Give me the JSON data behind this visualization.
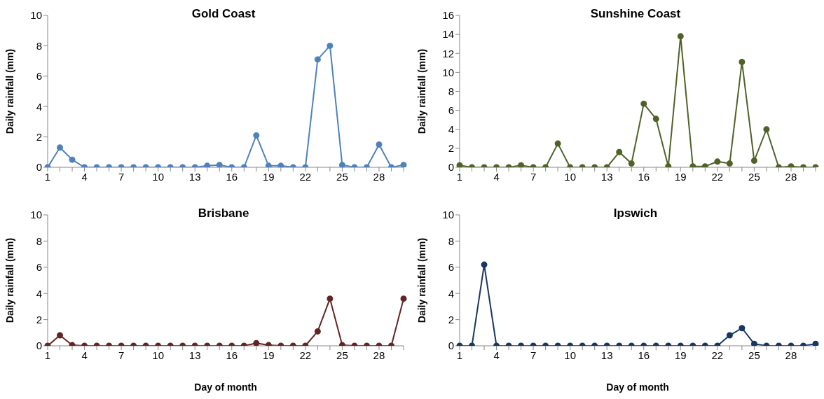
{
  "chart_data": [
    {
      "type": "line",
      "title": "Gold Coast",
      "ylabel": "Daily rainfall (mm)",
      "categories": [
        "1",
        null,
        null,
        "4",
        null,
        null,
        "7",
        null,
        null,
        "10",
        null,
        null,
        "13",
        null,
        null,
        "16",
        null,
        null,
        "19",
        null,
        null,
        "22",
        null,
        null,
        "25",
        null,
        null,
        "28",
        null,
        null
      ],
      "color": "#4f81bd",
      "marker": "circle",
      "ylim": [
        0,
        10
      ],
      "yticks": [
        0,
        2,
        4,
        6,
        8,
        10
      ],
      "values": [
        0,
        1.3,
        0.5,
        0,
        0,
        0,
        0,
        0,
        0,
        0,
        0,
        0,
        0,
        0.1,
        0.15,
        0,
        0,
        2.1,
        0.1,
        0.1,
        0,
        0,
        7.1,
        8,
        0.15,
        0,
        0,
        1.5,
        0,
        0.15
      ]
    },
    {
      "type": "line",
      "title": "Sunshine Coast",
      "ylabel": "Daily rainfall (mm)",
      "categories": [
        "1",
        null,
        null,
        "4",
        null,
        null,
        "7",
        null,
        null,
        "10",
        null,
        null,
        "13",
        null,
        null,
        "16",
        null,
        null,
        "19",
        null,
        null,
        "22",
        null,
        null,
        "25",
        null,
        null,
        "28",
        null,
        null
      ],
      "color": "#4f6228",
      "marker": "circle",
      "ylim": [
        0,
        16
      ],
      "yticks": [
        0,
        2,
        4,
        6,
        8,
        10,
        12,
        14,
        16
      ],
      "values": [
        0.2,
        0,
        0,
        0,
        0,
        0.2,
        0,
        0,
        2.5,
        0,
        0,
        0,
        0,
        1.6,
        0.4,
        6.7,
        5.1,
        0.1,
        13.8,
        0.1,
        0.1,
        0.6,
        0.4,
        11.1,
        0.7,
        4,
        0,
        0.1,
        0,
        0
      ]
    },
    {
      "type": "line",
      "title": "Brisbane",
      "ylabel": "Daily rainfall (mm)",
      "xlabel": "Day of month",
      "categories": [
        "1",
        null,
        null,
        "4",
        null,
        null,
        "7",
        null,
        null,
        "10",
        null,
        null,
        "13",
        null,
        null,
        "16",
        null,
        null,
        "19",
        null,
        null,
        "22",
        null,
        null,
        "25",
        null,
        null,
        "28",
        null,
        null
      ],
      "color": "#632523",
      "marker": "circle",
      "ylim": [
        0,
        10
      ],
      "yticks": [
        0,
        2,
        4,
        6,
        8,
        10
      ],
      "values": [
        0,
        0.8,
        0.05,
        0,
        0,
        0,
        0,
        0,
        0,
        0,
        0,
        0,
        0,
        0,
        0,
        0,
        0,
        0.2,
        0.05,
        0,
        0,
        0,
        1.1,
        3.6,
        0.05,
        0,
        0,
        0,
        0,
        3.6
      ]
    },
    {
      "type": "line",
      "title": "Ipswich",
      "ylabel": "Daily rainfall (mm)",
      "xlabel": "Day of month",
      "categories": [
        "1",
        null,
        null,
        "4",
        null,
        null,
        "7",
        null,
        null,
        "10",
        null,
        null,
        "13",
        null,
        null,
        "16",
        null,
        null,
        "19",
        null,
        null,
        "22",
        null,
        null,
        "25",
        null,
        null,
        "28",
        null,
        null
      ],
      "color": "#17375e",
      "marker": "circle",
      "ylim": [
        0,
        10
      ],
      "yticks": [
        0,
        2,
        4,
        6,
        8,
        10
      ],
      "values": [
        0,
        0,
        6.2,
        0,
        0,
        0,
        0,
        0,
        0,
        0,
        0,
        0,
        0,
        0,
        0,
        0,
        0,
        0,
        0,
        0,
        0,
        0,
        0.8,
        1.35,
        0.15,
        0,
        0,
        0,
        0,
        0.15
      ]
    }
  ]
}
